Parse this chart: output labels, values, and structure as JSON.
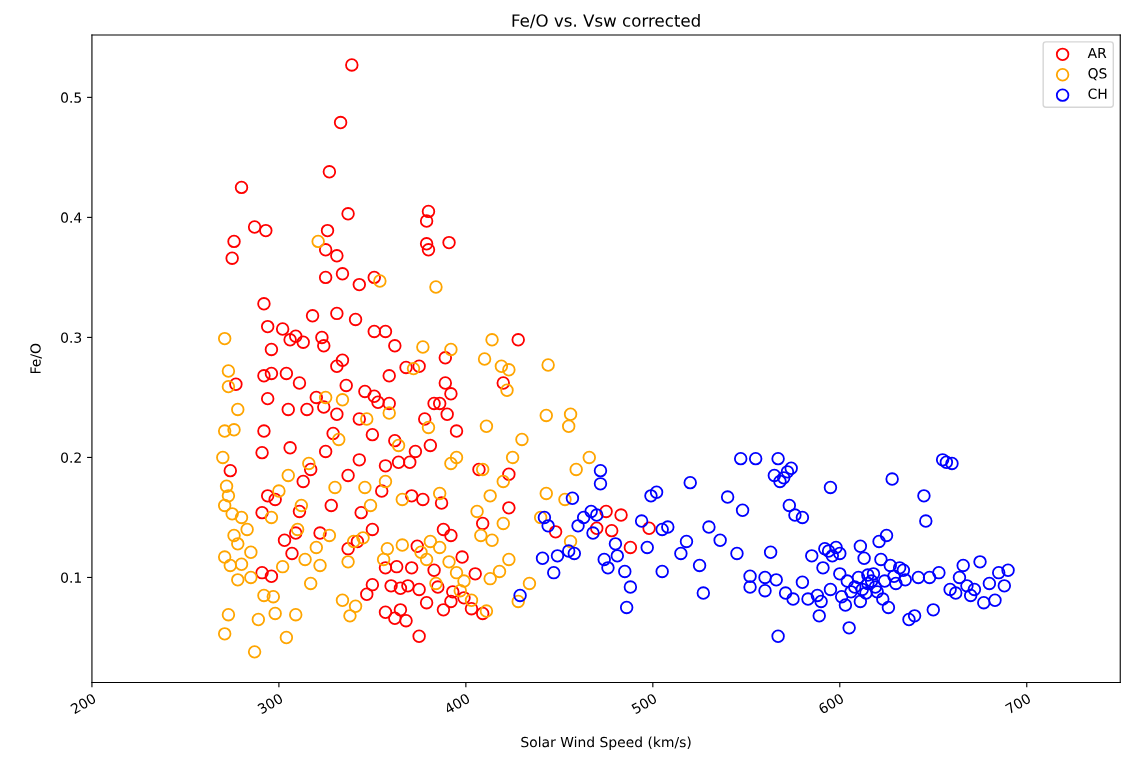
{
  "chart_data": {
    "type": "scatter",
    "title": "Fe/O vs. Vsw corrected",
    "xlabel": "Solar Wind Speed (km/s)",
    "ylabel": "Fe/O",
    "xlim": [
      200,
      750
    ],
    "xticks": [
      200,
      300,
      400,
      500,
      600,
      700
    ],
    "ylim": [
      0.0125,
      0.552
    ],
    "yticks": [
      0.1,
      0.2,
      0.3,
      0.4,
      0.5
    ],
    "marker": "circle",
    "legend": "top right",
    "grid": false,
    "series": [
      {
        "name": "AR",
        "color": "#ff0000",
        "x": [
          339,
          333,
          327,
          280,
          337,
          380,
          379,
          287,
          293,
          326,
          391,
          379,
          276,
          275,
          380,
          325,
          331,
          334,
          351,
          325,
          343,
          292,
          331,
          318,
          341,
          294,
          351,
          357,
          302,
          309,
          306,
          323,
          362,
          428,
          296,
          313,
          324,
          389,
          334,
          331,
          375,
          368,
          359,
          304,
          296,
          292,
          311,
          420,
          336,
          346,
          389,
          277,
          392,
          383,
          351,
          320,
          353,
          386,
          294,
          359,
          305,
          324,
          315,
          390,
          331,
          343,
          378,
          395,
          292,
          329,
          350,
          362,
          381,
          306,
          325,
          373,
          291,
          343,
          370,
          357,
          364,
          407,
          317,
          274,
          423,
          337,
          313,
          294,
          355,
          371,
          377,
          298,
          328,
          387,
          311,
          291,
          344,
          423,
          409,
          475,
          483,
          498,
          478,
          388,
          392,
          322,
          350,
          309,
          303,
          342,
          291,
          296,
          307,
          337,
          374,
          398,
          363,
          357,
          371,
          383,
          405,
          350,
          360,
          365,
          369,
          375,
          385,
          393,
          399,
          379,
          365,
          357,
          362,
          368,
          388,
          392,
          403,
          375,
          347,
          409,
          488,
          470,
          448
        ],
        "values": [
          0.527,
          0.479,
          0.438,
          0.425,
          0.403,
          0.405,
          0.397,
          0.392,
          0.389,
          0.389,
          0.379,
          0.378,
          0.38,
          0.366,
          0.373,
          0.373,
          0.368,
          0.353,
          0.35,
          0.35,
          0.344,
          0.328,
          0.32,
          0.318,
          0.315,
          0.309,
          0.305,
          0.305,
          0.307,
          0.301,
          0.298,
          0.3,
          0.293,
          0.298,
          0.29,
          0.296,
          0.293,
          0.283,
          0.281,
          0.276,
          0.276,
          0.275,
          0.268,
          0.27,
          0.27,
          0.268,
          0.262,
          0.262,
          0.26,
          0.255,
          0.262,
          0.261,
          0.253,
          0.245,
          0.251,
          0.25,
          0.246,
          0.245,
          0.249,
          0.245,
          0.24,
          0.242,
          0.24,
          0.236,
          0.236,
          0.232,
          0.232,
          0.222,
          0.222,
          0.22,
          0.219,
          0.214,
          0.21,
          0.208,
          0.205,
          0.205,
          0.204,
          0.198,
          0.196,
          0.193,
          0.196,
          0.19,
          0.19,
          0.189,
          0.186,
          0.185,
          0.18,
          0.168,
          0.172,
          0.168,
          0.165,
          0.165,
          0.16,
          0.162,
          0.155,
          0.154,
          0.154,
          0.158,
          0.145,
          0.155,
          0.152,
          0.141,
          0.139,
          0.14,
          0.135,
          0.137,
          0.14,
          0.137,
          0.131,
          0.13,
          0.104,
          0.101,
          0.12,
          0.124,
          0.126,
          0.117,
          0.109,
          0.108,
          0.108,
          0.106,
          0.103,
          0.094,
          0.093,
          0.091,
          0.093,
          0.09,
          0.092,
          0.088,
          0.083,
          0.079,
          0.073,
          0.071,
          0.066,
          0.064,
          0.073,
          0.08,
          0.074,
          0.051,
          0.086,
          0.07,
          0.125,
          0.141,
          0.138
        ]
      },
      {
        "name": "QS",
        "color": "#ffa500",
        "x": [
          321,
          354,
          384,
          377,
          392,
          414,
          271,
          410,
          372,
          419,
          423,
          444,
          422,
          456,
          443,
          455,
          273,
          273,
          278,
          271,
          276,
          325,
          334,
          359,
          347,
          380,
          411,
          270,
          272,
          273,
          271,
          275,
          280,
          283,
          276,
          278,
          271,
          274,
          280,
          285,
          278,
          285,
          273,
          271,
          289,
          287,
          309,
          304,
          292,
          297,
          298,
          314,
          320,
          317,
          327,
          340,
          345,
          337,
          334,
          341,
          338,
          358,
          356,
          366,
          376,
          381,
          386,
          379,
          391,
          395,
          399,
          384,
          397,
          411,
          403,
          413,
          418,
          428,
          434,
          423,
          414,
          408,
          406,
          413,
          420,
          425,
          430,
          420,
          440,
          453,
          456,
          466,
          459,
          443,
          395,
          392,
          409,
          357,
          346,
          316,
          305,
          300,
          312,
          330,
          366,
          386,
          310,
          296,
          302,
          349,
          322,
          332,
          364
        ],
        "values": [
          0.38,
          0.347,
          0.342,
          0.292,
          0.29,
          0.298,
          0.299,
          0.282,
          0.274,
          0.276,
          0.273,
          0.277,
          0.256,
          0.236,
          0.235,
          0.226,
          0.272,
          0.259,
          0.24,
          0.222,
          0.223,
          0.25,
          0.248,
          0.237,
          0.232,
          0.225,
          0.226,
          0.2,
          0.176,
          0.168,
          0.16,
          0.153,
          0.15,
          0.14,
          0.135,
          0.128,
          0.117,
          0.11,
          0.111,
          0.121,
          0.098,
          0.1,
          0.069,
          0.053,
          0.065,
          0.038,
          0.069,
          0.05,
          0.085,
          0.084,
          0.07,
          0.115,
          0.125,
          0.095,
          0.135,
          0.13,
          0.133,
          0.113,
          0.081,
          0.076,
          0.068,
          0.124,
          0.115,
          0.127,
          0.121,
          0.13,
          0.125,
          0.115,
          0.113,
          0.104,
          0.097,
          0.095,
          0.089,
          0.072,
          0.081,
          0.099,
          0.105,
          0.08,
          0.095,
          0.115,
          0.131,
          0.135,
          0.155,
          0.168,
          0.18,
          0.2,
          0.215,
          0.145,
          0.15,
          0.165,
          0.13,
          0.2,
          0.19,
          0.17,
          0.2,
          0.195,
          0.19,
          0.18,
          0.175,
          0.195,
          0.185,
          0.172,
          0.16,
          0.175,
          0.165,
          0.17,
          0.14,
          0.15,
          0.109,
          0.16,
          0.11,
          0.215,
          0.21
        ]
      },
      {
        "name": "CH",
        "color": "#0000ff",
        "x": [
          442,
          444,
          449,
          441,
          447,
          429,
          455,
          458,
          460,
          463,
          467,
          470,
          472,
          472,
          457,
          468,
          474,
          476,
          480,
          481,
          485,
          488,
          486,
          494,
          497,
          499,
          502,
          505,
          508,
          505,
          515,
          518,
          520,
          525,
          527,
          530,
          536,
          540,
          545,
          547,
          548,
          555,
          552,
          560,
          563,
          565,
          567,
          568,
          570,
          572,
          574,
          573,
          576,
          580,
          566,
          567,
          571,
          575,
          580,
          583,
          585,
          589,
          590,
          591,
          592,
          594,
          595,
          596,
          598,
          600,
          601,
          603,
          605,
          606,
          608,
          610,
          611,
          612,
          614,
          615,
          617,
          618,
          619,
          620,
          621,
          622,
          623,
          624,
          625,
          626,
          627,
          628,
          629,
          630,
          632,
          634,
          635,
          637,
          640,
          642,
          645,
          646,
          648,
          650,
          653,
          655,
          657,
          660,
          659,
          662,
          664,
          666,
          668,
          670,
          672,
          675,
          677,
          680,
          683,
          685,
          688,
          690,
          600,
          611,
          613,
          615,
          604,
          595,
          588,
          560,
          552
        ],
        "values": [
          0.15,
          0.143,
          0.118,
          0.116,
          0.104,
          0.085,
          0.122,
          0.12,
          0.143,
          0.15,
          0.155,
          0.152,
          0.189,
          0.178,
          0.166,
          0.137,
          0.115,
          0.108,
          0.128,
          0.118,
          0.105,
          0.092,
          0.075,
          0.147,
          0.125,
          0.168,
          0.171,
          0.14,
          0.142,
          0.105,
          0.12,
          0.13,
          0.179,
          0.11,
          0.087,
          0.142,
          0.131,
          0.167,
          0.12,
          0.199,
          0.156,
          0.199,
          0.101,
          0.1,
          0.121,
          0.185,
          0.199,
          0.18,
          0.183,
          0.188,
          0.191,
          0.16,
          0.152,
          0.15,
          0.098,
          0.051,
          0.087,
          0.082,
          0.096,
          0.082,
          0.118,
          0.068,
          0.08,
          0.108,
          0.124,
          0.122,
          0.175,
          0.118,
          0.125,
          0.103,
          0.084,
          0.077,
          0.058,
          0.088,
          0.092,
          0.1,
          0.08,
          0.09,
          0.087,
          0.095,
          0.097,
          0.103,
          0.092,
          0.088,
          0.13,
          0.115,
          0.082,
          0.097,
          0.135,
          0.075,
          0.11,
          0.182,
          0.101,
          0.095,
          0.108,
          0.106,
          0.098,
          0.065,
          0.068,
          0.1,
          0.168,
          0.147,
          0.1,
          0.073,
          0.104,
          0.198,
          0.196,
          0.195,
          0.09,
          0.087,
          0.1,
          0.11,
          0.093,
          0.085,
          0.09,
          0.113,
          0.079,
          0.095,
          0.081,
          0.104,
          0.093,
          0.106,
          0.12,
          0.126,
          0.116,
          0.102,
          0.097,
          0.09,
          0.085,
          0.089,
          0.092
        ]
      }
    ]
  }
}
